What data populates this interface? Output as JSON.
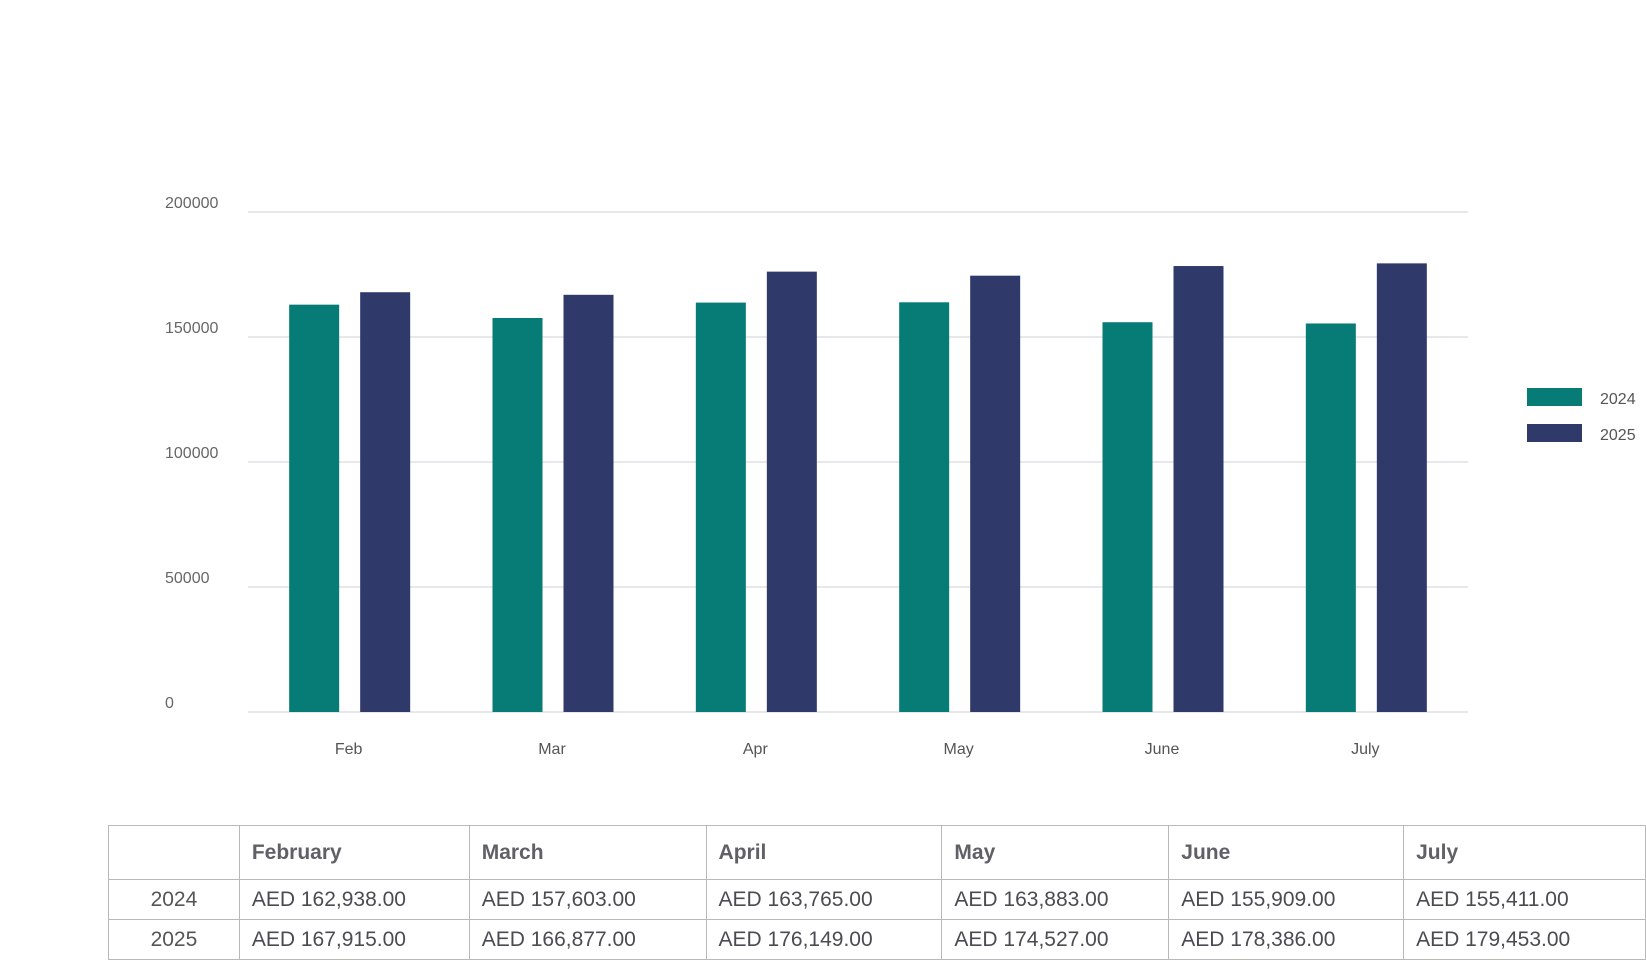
{
  "chart_data": {
    "type": "bar",
    "categories": [
      "Feb",
      "Mar",
      "Apr",
      "May",
      "June",
      "July"
    ],
    "series": [
      {
        "name": "2024",
        "color": "#077b75",
        "values": [
          162938,
          157603,
          163765,
          163883,
          155909,
          155411
        ]
      },
      {
        "name": "2025",
        "color": "#2f3a6b",
        "values": [
          167915,
          166877,
          176149,
          174527,
          178386,
          179453
        ]
      }
    ],
    "yticks": [
      "200000",
      "150000",
      "100000",
      "50000",
      "0"
    ],
    "ylim": [
      0,
      200000
    ],
    "grid": true,
    "legend": "right",
    "title": "",
    "xlabel": "",
    "ylabel": ""
  },
  "table": {
    "headers": [
      "",
      "February",
      "March",
      "April",
      "May",
      "June",
      "July"
    ],
    "rows": [
      {
        "year": "2024",
        "cells": [
          "AED 162,938.00",
          "AED 157,603.00",
          "AED 163,765.00",
          "AED 163,883.00",
          "AED 155,909.00",
          "AED 155,411.00"
        ]
      },
      {
        "year": "2025",
        "cells": [
          "AED 167,915.00",
          "AED 166,877.00",
          "AED 176,149.00",
          "AED 174,527.00",
          "AED 178,386.00",
          "AED 179,453.00"
        ]
      }
    ]
  }
}
